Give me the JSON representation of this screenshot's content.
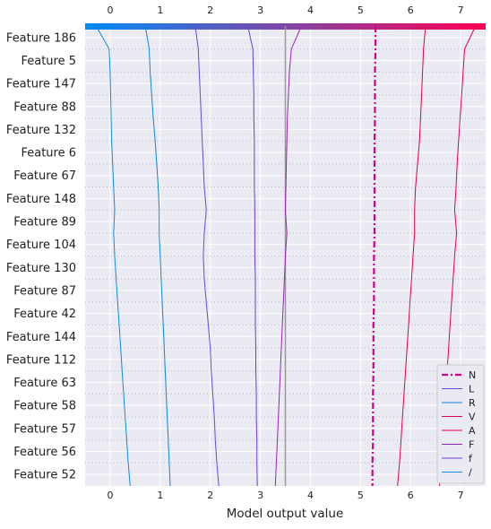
{
  "chart_data": {
    "type": "line",
    "title": "",
    "xlabel": "Model output value",
    "ylabel": "",
    "xlim": [
      -0.5,
      7.5
    ],
    "x_ticks": [
      "0",
      "1",
      "2",
      "3",
      "4",
      "5",
      "6",
      "7"
    ],
    "x_tick_values": [
      0,
      1,
      2,
      3,
      4,
      5,
      6,
      7
    ],
    "base_value": 3.5,
    "base_line_color": "#999999",
    "background_color": "#eaeaf2",
    "grid": true,
    "colorbar_top": {
      "from_color": "#008bfb",
      "to_color": "#ff0052"
    },
    "features": [
      "Feature 186",
      "Feature 5",
      "Feature 147",
      "Feature 88",
      "Feature 132",
      "Feature 6",
      "Feature 67",
      "Feature 148",
      "Feature 89",
      "Feature 104",
      "Feature 130",
      "Feature 87",
      "Feature 42",
      "Feature 144",
      "Feature 112",
      "Feature 63",
      "Feature 58",
      "Feature 57",
      "Feature 56",
      "Feature 52"
    ],
    "legend_position": "bottom-right",
    "series": [
      {
        "name": "N",
        "color": "#d1008b",
        "dash": true,
        "bold": true,
        "values": [
          5.3,
          5.3,
          5.29,
          5.29,
          5.29,
          5.28,
          5.28,
          5.28,
          5.28,
          5.28,
          5.27,
          5.27,
          5.27,
          5.26,
          5.26,
          5.26,
          5.25,
          5.25,
          5.25,
          5.24,
          5.24
        ]
      },
      {
        "name": "L",
        "color": "#6b45e0",
        "values": [
          1.7,
          1.76,
          1.78,
          1.8,
          1.82,
          1.84,
          1.86,
          1.88,
          1.92,
          1.88,
          1.86,
          1.88,
          1.92,
          1.96,
          2.0,
          2.02,
          2.05,
          2.08,
          2.1,
          2.13,
          2.17
        ]
      },
      {
        "name": "R",
        "color": "#0d86d8",
        "values": [
          0.7,
          0.78,
          0.8,
          0.83,
          0.86,
          0.9,
          0.93,
          0.96,
          0.98,
          0.98,
          1.0,
          1.02,
          1.04,
          1.06,
          1.08,
          1.1,
          1.12,
          1.14,
          1.16,
          1.18,
          1.2
        ]
      },
      {
        "name": "V",
        "color": "#e0005f",
        "values": [
          7.3,
          7.08,
          7.05,
          7.02,
          6.99,
          6.96,
          6.93,
          6.91,
          6.88,
          6.92,
          6.88,
          6.85,
          6.82,
          6.79,
          6.76,
          6.73,
          6.7,
          6.67,
          6.64,
          6.61,
          6.58
        ]
      },
      {
        "name": "A",
        "color": "#e0004e",
        "values": [
          6.3,
          6.26,
          6.24,
          6.22,
          6.2,
          6.18,
          6.14,
          6.1,
          6.08,
          6.08,
          6.05,
          6.02,
          5.99,
          5.96,
          5.93,
          5.9,
          5.87,
          5.84,
          5.81,
          5.78,
          5.74
        ]
      },
      {
        "name": "F",
        "color": "#9d1fbd",
        "values": [
          3.82,
          3.62,
          3.58,
          3.56,
          3.54,
          3.53,
          3.52,
          3.51,
          3.5,
          3.53,
          3.5,
          3.48,
          3.46,
          3.44,
          3.42,
          3.4,
          3.38,
          3.36,
          3.34,
          3.32,
          3.3
        ]
      },
      {
        "name": "f",
        "color": "#6a3fd8",
        "values": [
          2.75,
          2.85,
          2.86,
          2.87,
          2.87,
          2.88,
          2.88,
          2.88,
          2.89,
          2.89,
          2.89,
          2.9,
          2.9,
          2.9,
          2.91,
          2.91,
          2.92,
          2.92,
          2.93,
          2.93,
          2.94
        ]
      },
      {
        "name": "/",
        "color": "#0f8be0",
        "values": [
          -0.28,
          -0.02,
          0.0,
          0.01,
          0.02,
          0.03,
          0.05,
          0.07,
          0.09,
          0.07,
          0.09,
          0.12,
          0.15,
          0.18,
          0.21,
          0.24,
          0.27,
          0.3,
          0.33,
          0.36,
          0.4
        ]
      }
    ]
  }
}
